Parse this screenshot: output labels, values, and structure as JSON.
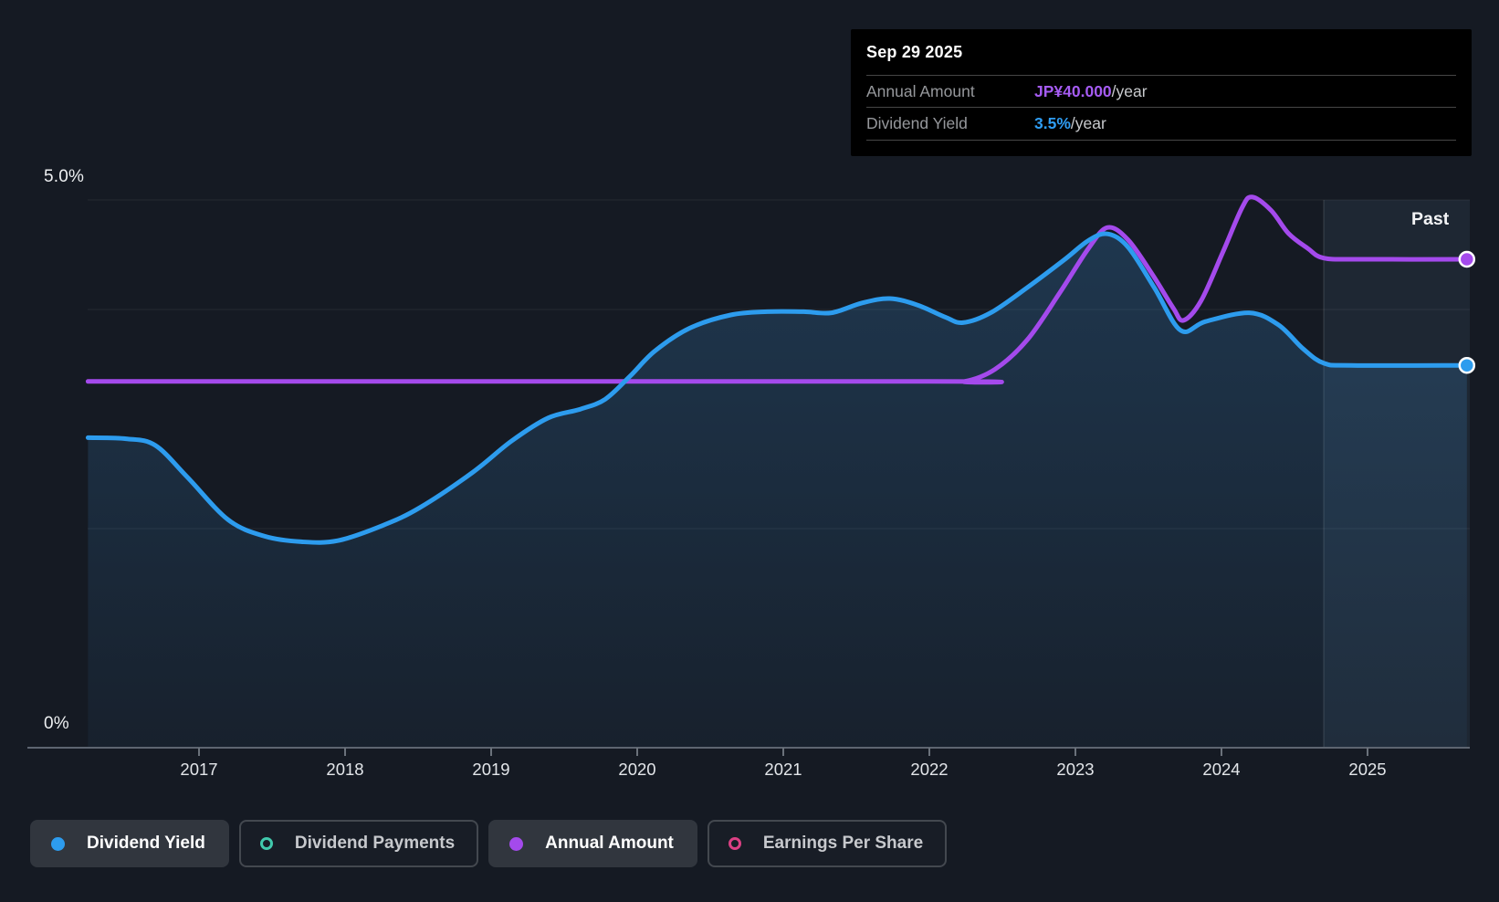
{
  "page": {
    "background": "#151a23"
  },
  "tooltip": {
    "date": "Sep 29 2025",
    "rows": [
      {
        "label": "Annual Amount",
        "value": "JP¥40.000",
        "suffix": "/year",
        "value_color": "#a55bf2"
      },
      {
        "label": "Dividend Yield",
        "value": "3.5%",
        "suffix": "/year",
        "value_color": "#2f9df3"
      }
    ]
  },
  "past_label": "Past",
  "y_axis": {
    "top_label": "5.0%",
    "bottom_label": "0%"
  },
  "legend": [
    {
      "label": "Dividend Yield",
      "marker": "dot",
      "color": "#2d9cee",
      "active": true
    },
    {
      "label": "Dividend Payments",
      "marker": "ring",
      "color": "#41c9ac",
      "active": false
    },
    {
      "label": "Annual Amount",
      "marker": "dot",
      "color": "#a44aec",
      "active": true
    },
    {
      "label": "Earnings Per Share",
      "marker": "ring",
      "color": "#dc4084",
      "active": false
    }
  ],
  "chart_data": {
    "type": "line",
    "title": "Dividend history",
    "x_axis": {
      "ticks": [
        "2017",
        "2018",
        "2019",
        "2020",
        "2021",
        "2022",
        "2023",
        "2024",
        "2025"
      ],
      "range": [
        2016.24,
        2025.68
      ]
    },
    "y_axis_pct": {
      "unit": "%",
      "range": [
        0,
        5.0
      ],
      "gridlines": [
        5.0,
        4.0,
        2.0,
        0.0
      ],
      "top_tick_label": "5.0%",
      "bottom_tick_label": "0%"
    },
    "past_band_start": 2024.7,
    "legend_position": "bottom",
    "series": [
      {
        "name": "Dividend Yield",
        "unit": "%",
        "color": "#2d9cee",
        "area_fill": true,
        "end_marker": true,
        "points": [
          [
            2016.24,
            2.83
          ],
          [
            2016.5,
            2.82
          ],
          [
            2016.7,
            2.76
          ],
          [
            2016.92,
            2.47
          ],
          [
            2017.2,
            2.08
          ],
          [
            2017.45,
            1.93
          ],
          [
            2017.7,
            1.88
          ],
          [
            2017.95,
            1.89
          ],
          [
            2018.26,
            2.03
          ],
          [
            2018.51,
            2.19
          ],
          [
            2018.87,
            2.51
          ],
          [
            2019.14,
            2.8
          ],
          [
            2019.39,
            3.01
          ],
          [
            2019.61,
            3.09
          ],
          [
            2019.78,
            3.18
          ],
          [
            2019.95,
            3.39
          ],
          [
            2020.12,
            3.62
          ],
          [
            2020.36,
            3.83
          ],
          [
            2020.64,
            3.95
          ],
          [
            2020.89,
            3.98
          ],
          [
            2021.14,
            3.98
          ],
          [
            2021.33,
            3.97
          ],
          [
            2021.54,
            4.06
          ],
          [
            2021.73,
            4.1
          ],
          [
            2021.92,
            4.04
          ],
          [
            2022.11,
            3.93
          ],
          [
            2022.23,
            3.88
          ],
          [
            2022.42,
            3.97
          ],
          [
            2022.67,
            4.2
          ],
          [
            2022.92,
            4.45
          ],
          [
            2023.09,
            4.63
          ],
          [
            2023.22,
            4.69
          ],
          [
            2023.36,
            4.57
          ],
          [
            2023.54,
            4.2
          ],
          [
            2023.72,
            3.81
          ],
          [
            2023.89,
            3.89
          ],
          [
            2024.19,
            3.97
          ],
          [
            2024.39,
            3.86
          ],
          [
            2024.56,
            3.64
          ],
          [
            2024.7,
            3.51
          ],
          [
            2024.89,
            3.49
          ],
          [
            2025.68,
            3.49
          ]
        ]
      },
      {
        "name": "Annual Amount",
        "unit": "JP¥/year",
        "color": "#a44aec",
        "area_fill": false,
        "end_marker": true,
        "points": [
          [
            2016.24,
            30.0
          ],
          [
            2022.0,
            30.0
          ],
          [
            2022.24,
            30.0
          ],
          [
            2022.45,
            31.0
          ],
          [
            2022.67,
            33.4
          ],
          [
            2022.89,
            37.2
          ],
          [
            2023.09,
            40.9
          ],
          [
            2023.22,
            42.6
          ],
          [
            2023.36,
            41.6
          ],
          [
            2023.53,
            38.7
          ],
          [
            2023.67,
            36.0
          ],
          [
            2023.74,
            35.0
          ],
          [
            2023.86,
            36.6
          ],
          [
            2024.01,
            40.6
          ],
          [
            2024.14,
            44.2
          ],
          [
            2024.21,
            45.1
          ],
          [
            2024.34,
            44.0
          ],
          [
            2024.46,
            42.1
          ],
          [
            2024.59,
            40.9
          ],
          [
            2024.7,
            40.1
          ],
          [
            2024.95,
            40.0
          ],
          [
            2025.68,
            40.0
          ]
        ]
      }
    ]
  }
}
